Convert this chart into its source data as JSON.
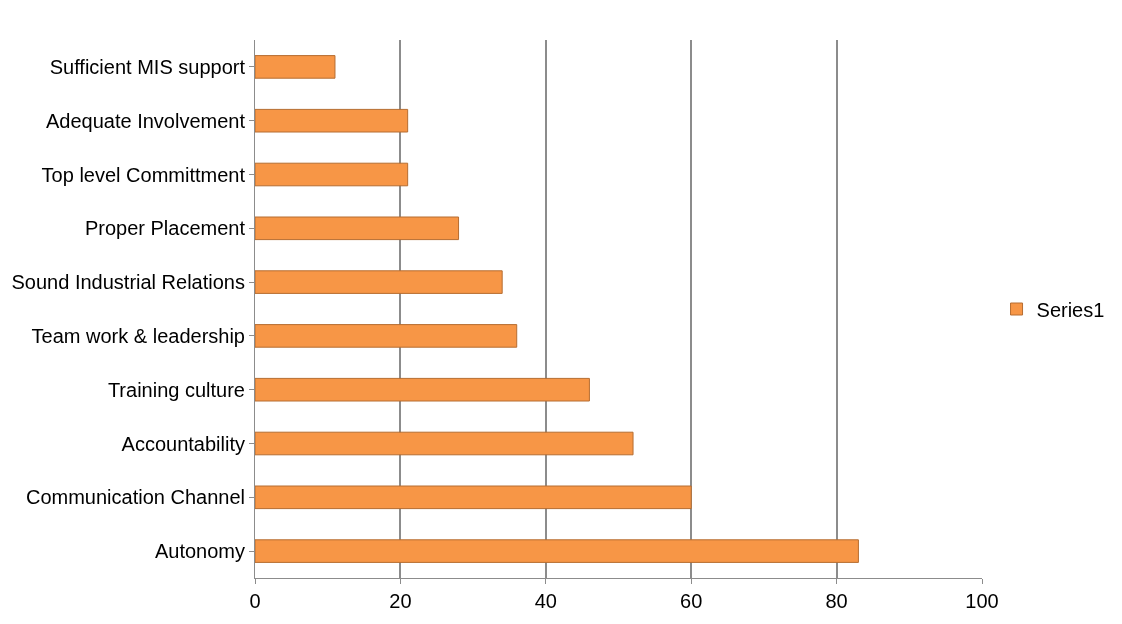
{
  "chart_data": {
    "type": "bar",
    "orientation": "horizontal",
    "categories": [
      "Sufficient MIS support",
      "Adequate Involvement",
      "Top level Committment",
      "Proper Placement",
      "Sound Industrial Relations",
      "Team work & leadership",
      "Training culture",
      "Accountability",
      "Communication Channel",
      "Autonomy"
    ],
    "series": [
      {
        "name": "Series1",
        "color": "#f79646",
        "values": [
          11,
          21,
          21,
          28,
          34,
          36,
          46,
          52,
          60,
          83
        ]
      }
    ],
    "xlim": [
      0,
      100
    ],
    "xticks": [
      0,
      20,
      40,
      60,
      80,
      100
    ],
    "grid": "x",
    "legend": "right"
  }
}
